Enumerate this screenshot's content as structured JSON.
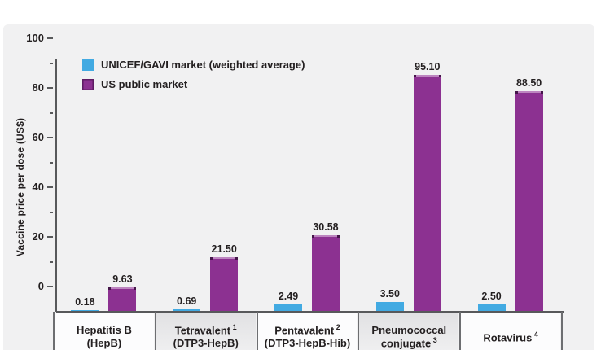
{
  "figure": {
    "panel_bg": "#f1f1f2",
    "axis_color": "#58595b",
    "text_color": "#231f20",
    "divider_color": "#6d6e71"
  },
  "chart_data": {
    "type": "bar",
    "title": "",
    "xlabel": "",
    "ylabel": "Vaccine price per dose (US$)",
    "ylim": [
      0,
      100
    ],
    "yticks": [
      0,
      20,
      40,
      60,
      80,
      100
    ],
    "minor_tick_step": 10,
    "grid": false,
    "legend_position": "top-left",
    "categories": [
      {
        "label": "Hepatitis B",
        "sup": "",
        "sublabel": "(HepB)"
      },
      {
        "label": "Tetravalent",
        "sup": "1",
        "sublabel": "(DTP3-HepB)"
      },
      {
        "label": "Pentavalent",
        "sup": "2",
        "sublabel": "(DTP3-HepB-Hib)"
      },
      {
        "label": "Pneumococcal conjugate",
        "sup": "3",
        "sublabel": ""
      },
      {
        "label": "Rotavirus",
        "sup": "4",
        "sublabel": ""
      }
    ],
    "series": [
      {
        "name": "UNICEF/GAVI market (weighted average)",
        "color": "#42aae2",
        "values": [
          0.18,
          0.69,
          2.49,
          3.5,
          2.5
        ],
        "labels": [
          "0.18",
          "0.69",
          "2.49",
          "3.50",
          "2.50"
        ]
      },
      {
        "name": "US public market",
        "color": "#8c3191",
        "values": [
          9.63,
          21.5,
          30.58,
          95.1,
          88.5
        ],
        "labels": [
          "9.63",
          "21.50",
          "30.58",
          "95.10",
          "88.50"
        ]
      }
    ]
  }
}
